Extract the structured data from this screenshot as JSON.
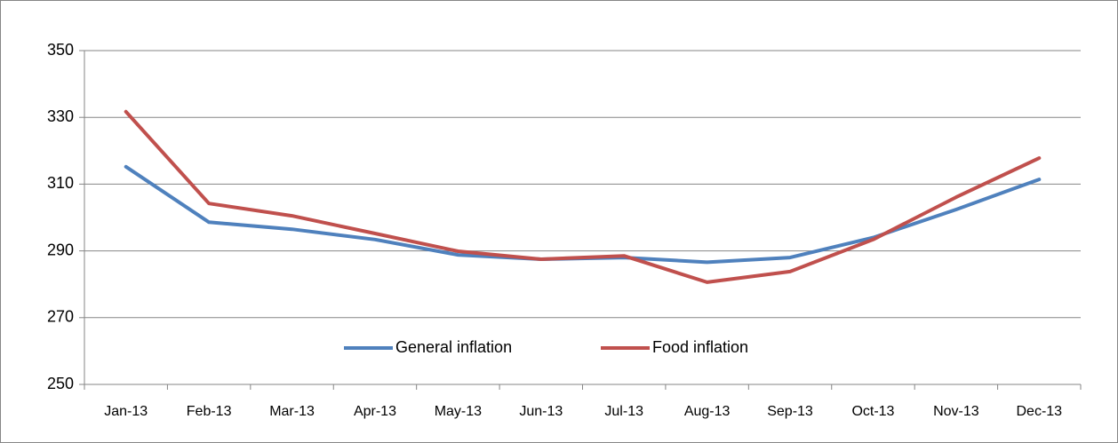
{
  "chart_data": {
    "type": "line",
    "categories": [
      "Jan-13",
      "Feb-13",
      "Mar-13",
      "Apr-13",
      "May-13",
      "Jun-13",
      "Jul-13",
      "Aug-13",
      "Sep-13",
      "Oct-13",
      "Nov-13",
      "Dec-13"
    ],
    "series": [
      {
        "name": "General inflation",
        "color": "#4f81bd",
        "values": [
          315.2,
          298.6,
          296.5,
          293.4,
          288.8,
          287.5,
          288.0,
          286.6,
          288.0,
          294.0,
          302.4,
          311.4
        ]
      },
      {
        "name": "Food inflation",
        "color": "#c0504d",
        "values": [
          331.7,
          304.2,
          300.5,
          295.2,
          289.9,
          287.5,
          288.5,
          280.6,
          283.8,
          293.4,
          306.1,
          317.8
        ]
      }
    ],
    "ylim": [
      250,
      350
    ],
    "yticks": [
      250,
      270,
      290,
      310,
      330,
      350
    ],
    "grid": true,
    "legend": "bottom"
  }
}
